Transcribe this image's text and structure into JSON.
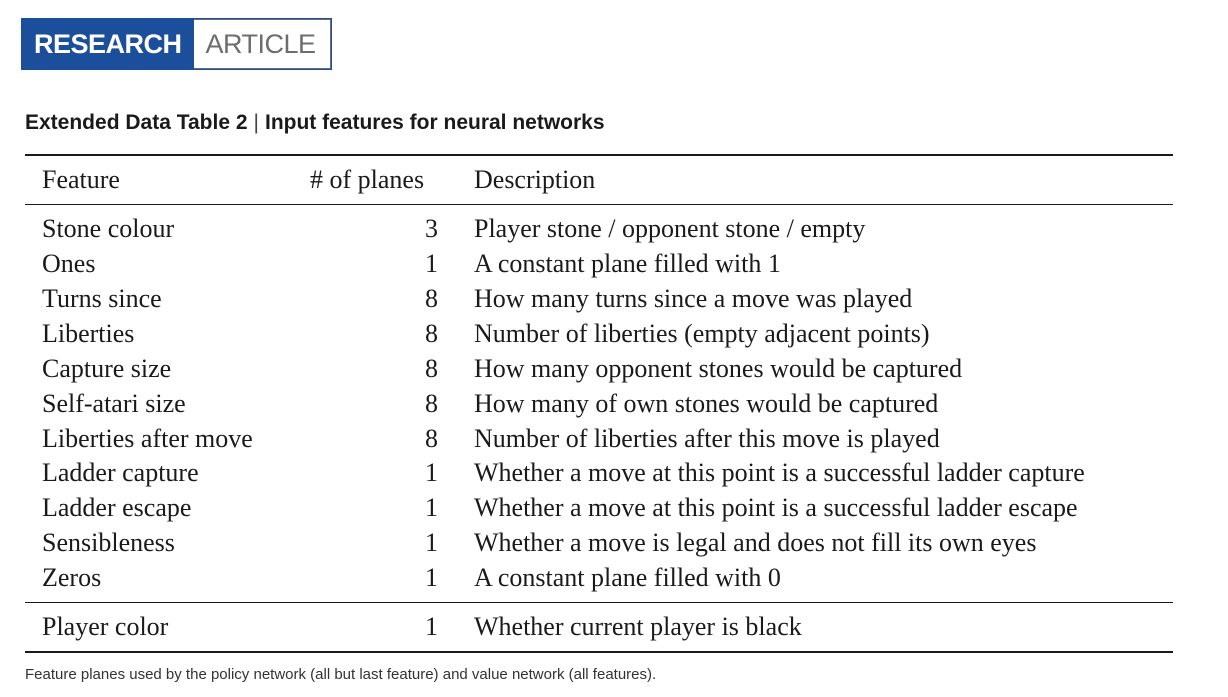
{
  "badge": {
    "primary": "RESEARCH",
    "secondary": "ARTICLE"
  },
  "table": {
    "title_label": "Extended Data Table 2",
    "title_separator": "|",
    "title_text": "Input features for neural networks",
    "headers": {
      "feature": "Feature",
      "planes": "# of planes",
      "description": "Description"
    },
    "rows": [
      {
        "feature": "Stone colour",
        "planes": "3",
        "description": "Player stone / opponent stone / empty"
      },
      {
        "feature": "Ones",
        "planes": "1",
        "description": "A constant plane filled with 1"
      },
      {
        "feature": "Turns since",
        "planes": "8",
        "description": "How many turns since a move was played"
      },
      {
        "feature": "Liberties",
        "planes": "8",
        "description": "Number of liberties (empty adjacent points)"
      },
      {
        "feature": "Capture size",
        "planes": "8",
        "description": "How many opponent stones would be captured"
      },
      {
        "feature": "Self-atari size",
        "planes": "8",
        "description": "How many of own stones would be captured"
      },
      {
        "feature": "Liberties after move",
        "planes": "8",
        "description": "Number of liberties after this move is played"
      },
      {
        "feature": "Ladder capture",
        "planes": "1",
        "description": "Whether a move at this point is a successful ladder capture"
      },
      {
        "feature": "Ladder escape",
        "planes": "1",
        "description": "Whether a move at this point is a successful ladder escape"
      },
      {
        "feature": "Sensibleness",
        "planes": "1",
        "description": "Whether a move is legal and does not fill its own eyes"
      },
      {
        "feature": "Zeros",
        "planes": "1",
        "description": "A constant plane filled with 0"
      }
    ],
    "final_row": {
      "feature": "Player color",
      "planes": "1",
      "description": "Whether current player is black"
    }
  },
  "caption": "Feature planes used by the policy network (all but last feature) and value network (all features)."
}
